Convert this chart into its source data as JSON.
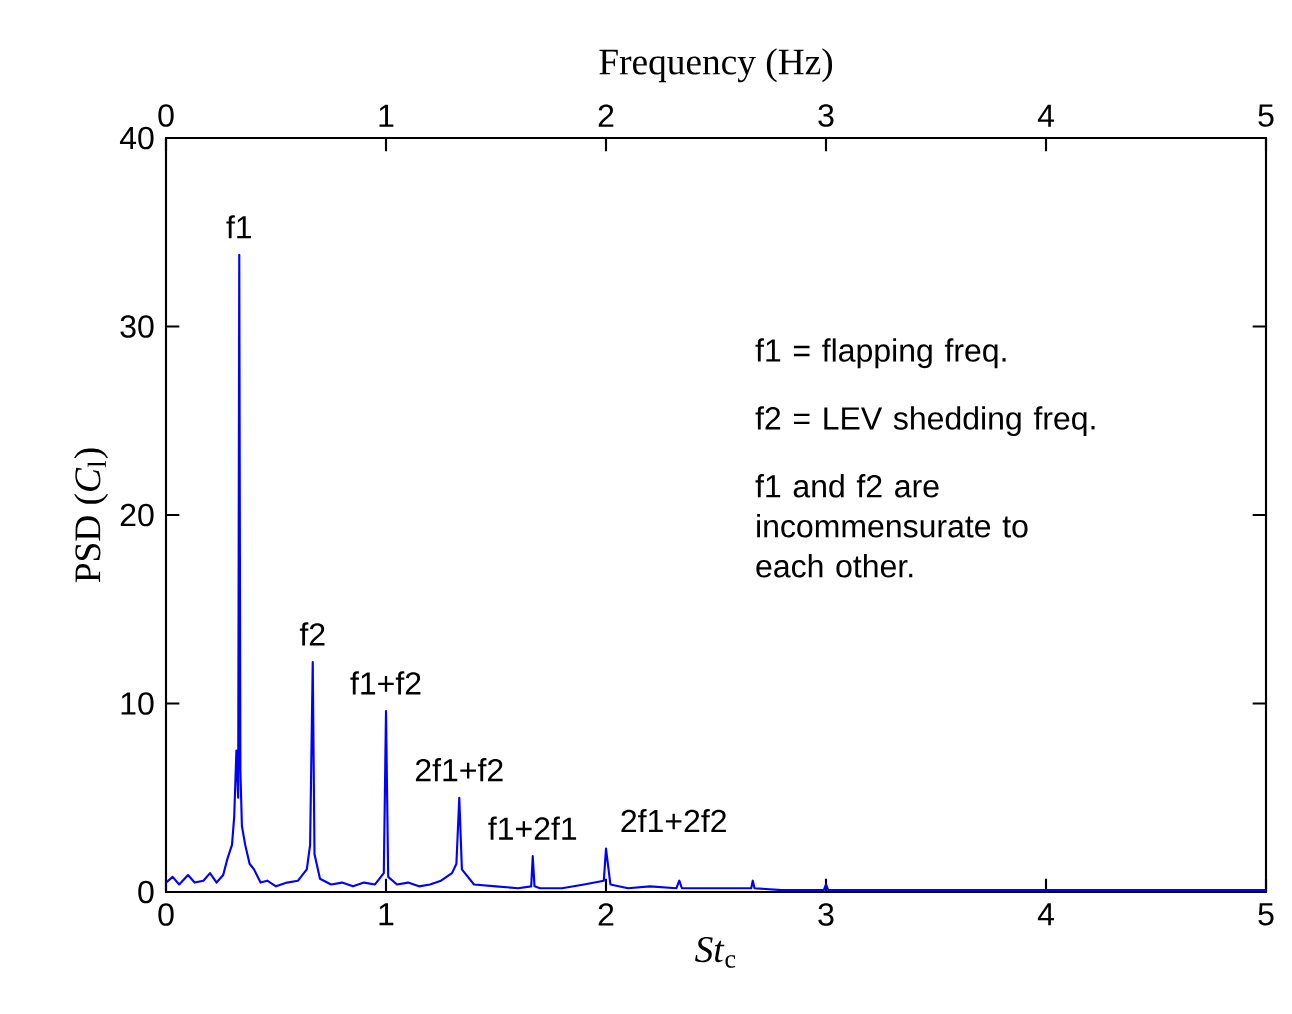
{
  "chart_data": {
    "type": "line",
    "xlabel": "*St*$_{c}$",
    "ylabel": "PSD (*C*$_{l}$)",
    "x2label": "Frequency (Hz)",
    "xlim": [
      0,
      5
    ],
    "xticks": [
      0,
      1,
      2,
      3,
      4,
      5
    ],
    "x2lim": [
      0,
      5
    ],
    "x2ticks": [
      0,
      1,
      2,
      3,
      4,
      5
    ],
    "ylim": [
      0,
      40
    ],
    "yticks": [
      0,
      10,
      20,
      30,
      40
    ],
    "grid": false,
    "marker": "none",
    "line_style": "solid",
    "series": [
      {
        "color": "#0000ff",
        "x": [
          0,
          0.03,
          0.06,
          0.1,
          0.13,
          0.17,
          0.2,
          0.23,
          0.26,
          0.28,
          0.3,
          0.31,
          0.32,
          0.328,
          0.333,
          0.338,
          0.345,
          0.36,
          0.38,
          0.4,
          0.43,
          0.46,
          0.5,
          0.55,
          0.6,
          0.64,
          0.655,
          0.667,
          0.675,
          0.7,
          0.75,
          0.8,
          0.85,
          0.9,
          0.95,
          0.99,
          1.0,
          1.01,
          1.05,
          1.1,
          1.15,
          1.2,
          1.25,
          1.3,
          1.32,
          1.333,
          1.345,
          1.4,
          1.5,
          1.6,
          1.66,
          1.667,
          1.675,
          1.7,
          1.8,
          1.9,
          1.99,
          2.0,
          2.02,
          2.1,
          2.2,
          2.32,
          2.333,
          2.345,
          2.4,
          2.5,
          2.66,
          2.667,
          2.675,
          2.8,
          2.99,
          3.0,
          3.01,
          3.1,
          3.5,
          4.0,
          4.5,
          5.0
        ],
        "values": [
          0.5,
          0.8,
          0.4,
          0.9,
          0.5,
          0.6,
          1.0,
          0.5,
          0.9,
          1.8,
          2.5,
          4.0,
          7.5,
          5.0,
          33.8,
          6.5,
          3.5,
          2.5,
          1.5,
          1.2,
          0.5,
          0.6,
          0.3,
          0.5,
          0.6,
          1.2,
          2.5,
          12.2,
          2.0,
          0.7,
          0.4,
          0.5,
          0.3,
          0.5,
          0.4,
          1.0,
          9.6,
          0.8,
          0.4,
          0.5,
          0.3,
          0.4,
          0.6,
          1.0,
          1.5,
          5.0,
          1.2,
          0.4,
          0.3,
          0.2,
          0.3,
          1.9,
          0.3,
          0.2,
          0.2,
          0.4,
          0.6,
          2.3,
          0.4,
          0.2,
          0.3,
          0.2,
          0.6,
          0.2,
          0.2,
          0.2,
          0.2,
          0.6,
          0.2,
          0.1,
          0.1,
          0.4,
          0.1,
          0.1,
          0.1,
          0.1,
          0.1,
          0.1
        ]
      }
    ],
    "annotations": [
      {
        "text": "f1",
        "x": 0.333,
        "y": 33.8
      },
      {
        "text": "f2",
        "x": 0.667,
        "y": 12.2
      },
      {
        "text": "f1+f2",
        "x": 1.0,
        "y": 9.6
      },
      {
        "text": "2f1+f2",
        "x": 1.333,
        "y": 5.0
      },
      {
        "text": "f1+2f1",
        "x": 1.667,
        "y": 1.9
      },
      {
        "text": "2f1+2f2",
        "x": 2.0,
        "y": 2.3
      },
      "f1 = flapping freq.",
      "f2 = LEV shedding freq.",
      "f1 and f2 are incommensurate to each other."
    ]
  }
}
